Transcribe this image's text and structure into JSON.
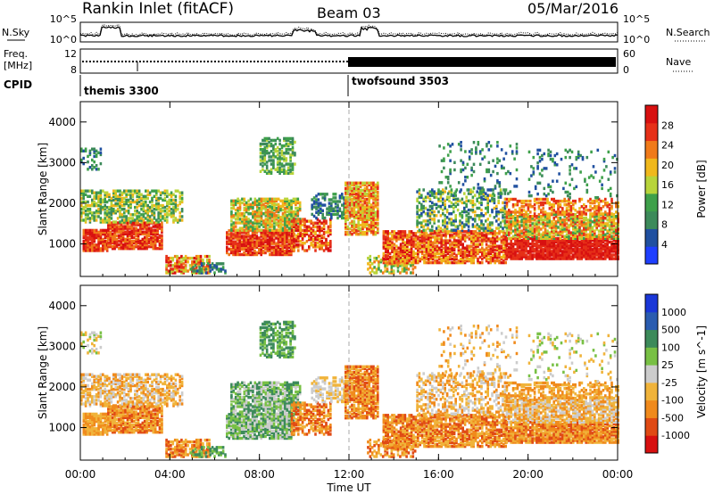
{
  "header": {
    "station": "Rankin Inlet (fitACF)",
    "beam": "Beam 03",
    "date": "05/Mar/2016"
  },
  "noise_panel": {
    "left_label": "N.Sky",
    "right_label": "N.Search",
    "ticks": [
      "10^5",
      "10^0"
    ],
    "right_ticks": [
      "10^5",
      "10^0"
    ]
  },
  "freq_panel": {
    "left_label_line1": "Freq.",
    "left_label_line2": "[MHz]",
    "right_label": "Nave",
    "left_ticks": [
      "12",
      "8"
    ],
    "right_ticks": [
      "60",
      "0"
    ]
  },
  "cpid": {
    "label": "CPID",
    "programs": [
      "themis 3300",
      "twofsound 3503"
    ]
  },
  "colors": {
    "power": [
      "#1f3fff",
      "#2050a0",
      "#3c8a5a",
      "#3ea04a",
      "#b8d43a",
      "#f0b81c",
      "#f07a1a",
      "#e63018",
      "#d81010"
    ],
    "velocity": [
      "#1a37d8",
      "#2a5cb0",
      "#3c8a5a",
      "#78c044",
      "#cccccc",
      "#f0b33a",
      "#f08a1c",
      "#e04a14",
      "#d81010"
    ]
  },
  "chart_data": [
    {
      "type": "heatmap",
      "title": "Power",
      "ylabel": "Slant Range [km]",
      "y_ticks": [
        1000,
        2000,
        3000,
        4000
      ],
      "ylim": [
        200,
        4500
      ],
      "x_ticks": [
        "00:00",
        "04:00",
        "08:00",
        "12:00",
        "16:00",
        "20:00",
        "00:00"
      ],
      "xlim_hours": [
        0,
        24
      ],
      "colorbar": {
        "label": "Power [dB]",
        "ticks": [
          "28",
          "24",
          "20",
          "16",
          "12",
          "8",
          "4"
        ]
      }
    },
    {
      "type": "heatmap",
      "title": "Velocity",
      "ylabel": "Slant Range [km]",
      "xlabel": "Time UT",
      "y_ticks": [
        1000,
        2000,
        3000,
        4000
      ],
      "ylim": [
        200,
        4500
      ],
      "x_ticks": [
        "00:00",
        "04:00",
        "08:00",
        "12:00",
        "16:00",
        "20:00",
        "00:00"
      ],
      "xlim_hours": [
        0,
        24
      ],
      "colorbar": {
        "label": "Velocity [m s^-1]",
        "ticks": [
          "1000",
          "500",
          "100",
          "25",
          "-25",
          "-100",
          "-500",
          "-1000"
        ]
      }
    }
  ]
}
